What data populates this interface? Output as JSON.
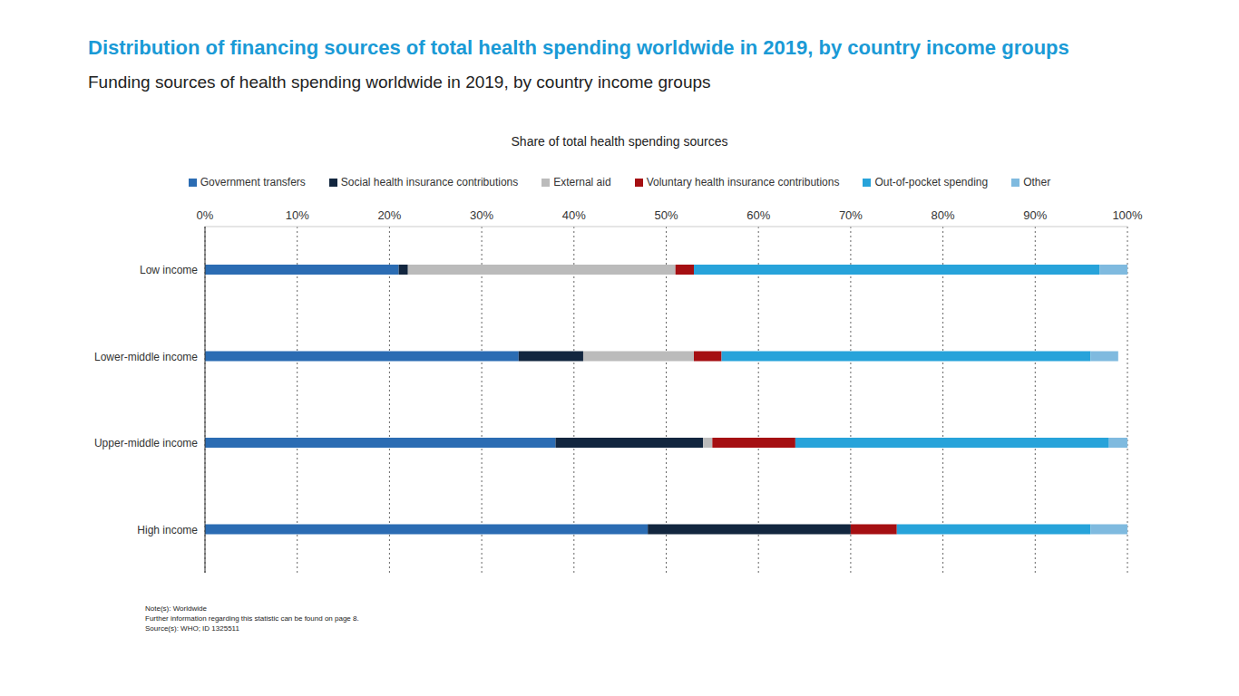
{
  "chart_data": {
    "type": "bar",
    "orientation": "horizontal",
    "stacked": true,
    "title": "Distribution of financing sources of total health spending worldwide in 2019, by country income groups",
    "subtitle": "Funding sources of health spending worldwide in 2019, by country income groups",
    "x_label": "Share of total health spending sources",
    "categories": [
      "Low income",
      "Lower-middle income",
      "Upper-middle income",
      "High income"
    ],
    "series": [
      {
        "name": "Government transfers",
        "color": "#2b6cb3",
        "values": [
          21,
          34,
          38,
          48
        ]
      },
      {
        "name": "Social health insurance contributions",
        "color": "#12263f",
        "values": [
          1,
          7,
          16,
          22
        ]
      },
      {
        "name": "External aid",
        "color": "#bbbbbb",
        "values": [
          29,
          12,
          1,
          0
        ]
      },
      {
        "name": "Voluntary health insurance contributions",
        "color": "#a50f12",
        "values": [
          2,
          3,
          9,
          5
        ]
      },
      {
        "name": "Out-of-pocket spending",
        "color": "#27a3da",
        "values": [
          44,
          40,
          34,
          21
        ]
      },
      {
        "name": "Other",
        "color": "#7fbadf",
        "values": [
          3,
          3,
          2,
          4
        ]
      }
    ],
    "xlim": [
      0,
      100
    ],
    "xticks": [
      {
        "value": 0,
        "label": "0%"
      },
      {
        "value": 10,
        "label": "10%"
      },
      {
        "value": 20,
        "label": "20%"
      },
      {
        "value": 30,
        "label": "30%"
      },
      {
        "value": 40,
        "label": "40%"
      },
      {
        "value": 50,
        "label": "50%"
      },
      {
        "value": 60,
        "label": "60%"
      },
      {
        "value": 70,
        "label": "70%"
      },
      {
        "value": 80,
        "label": "80%"
      },
      {
        "value": 90,
        "label": "90%"
      },
      {
        "value": 100,
        "label": "100%"
      }
    ],
    "grid": true,
    "legend": "top",
    "annotations": [
      "Note(s): Worldwide",
      "Further information regarding this statistic can be found on page 8.",
      "Source(s): WHO; ID 1325511"
    ]
  }
}
